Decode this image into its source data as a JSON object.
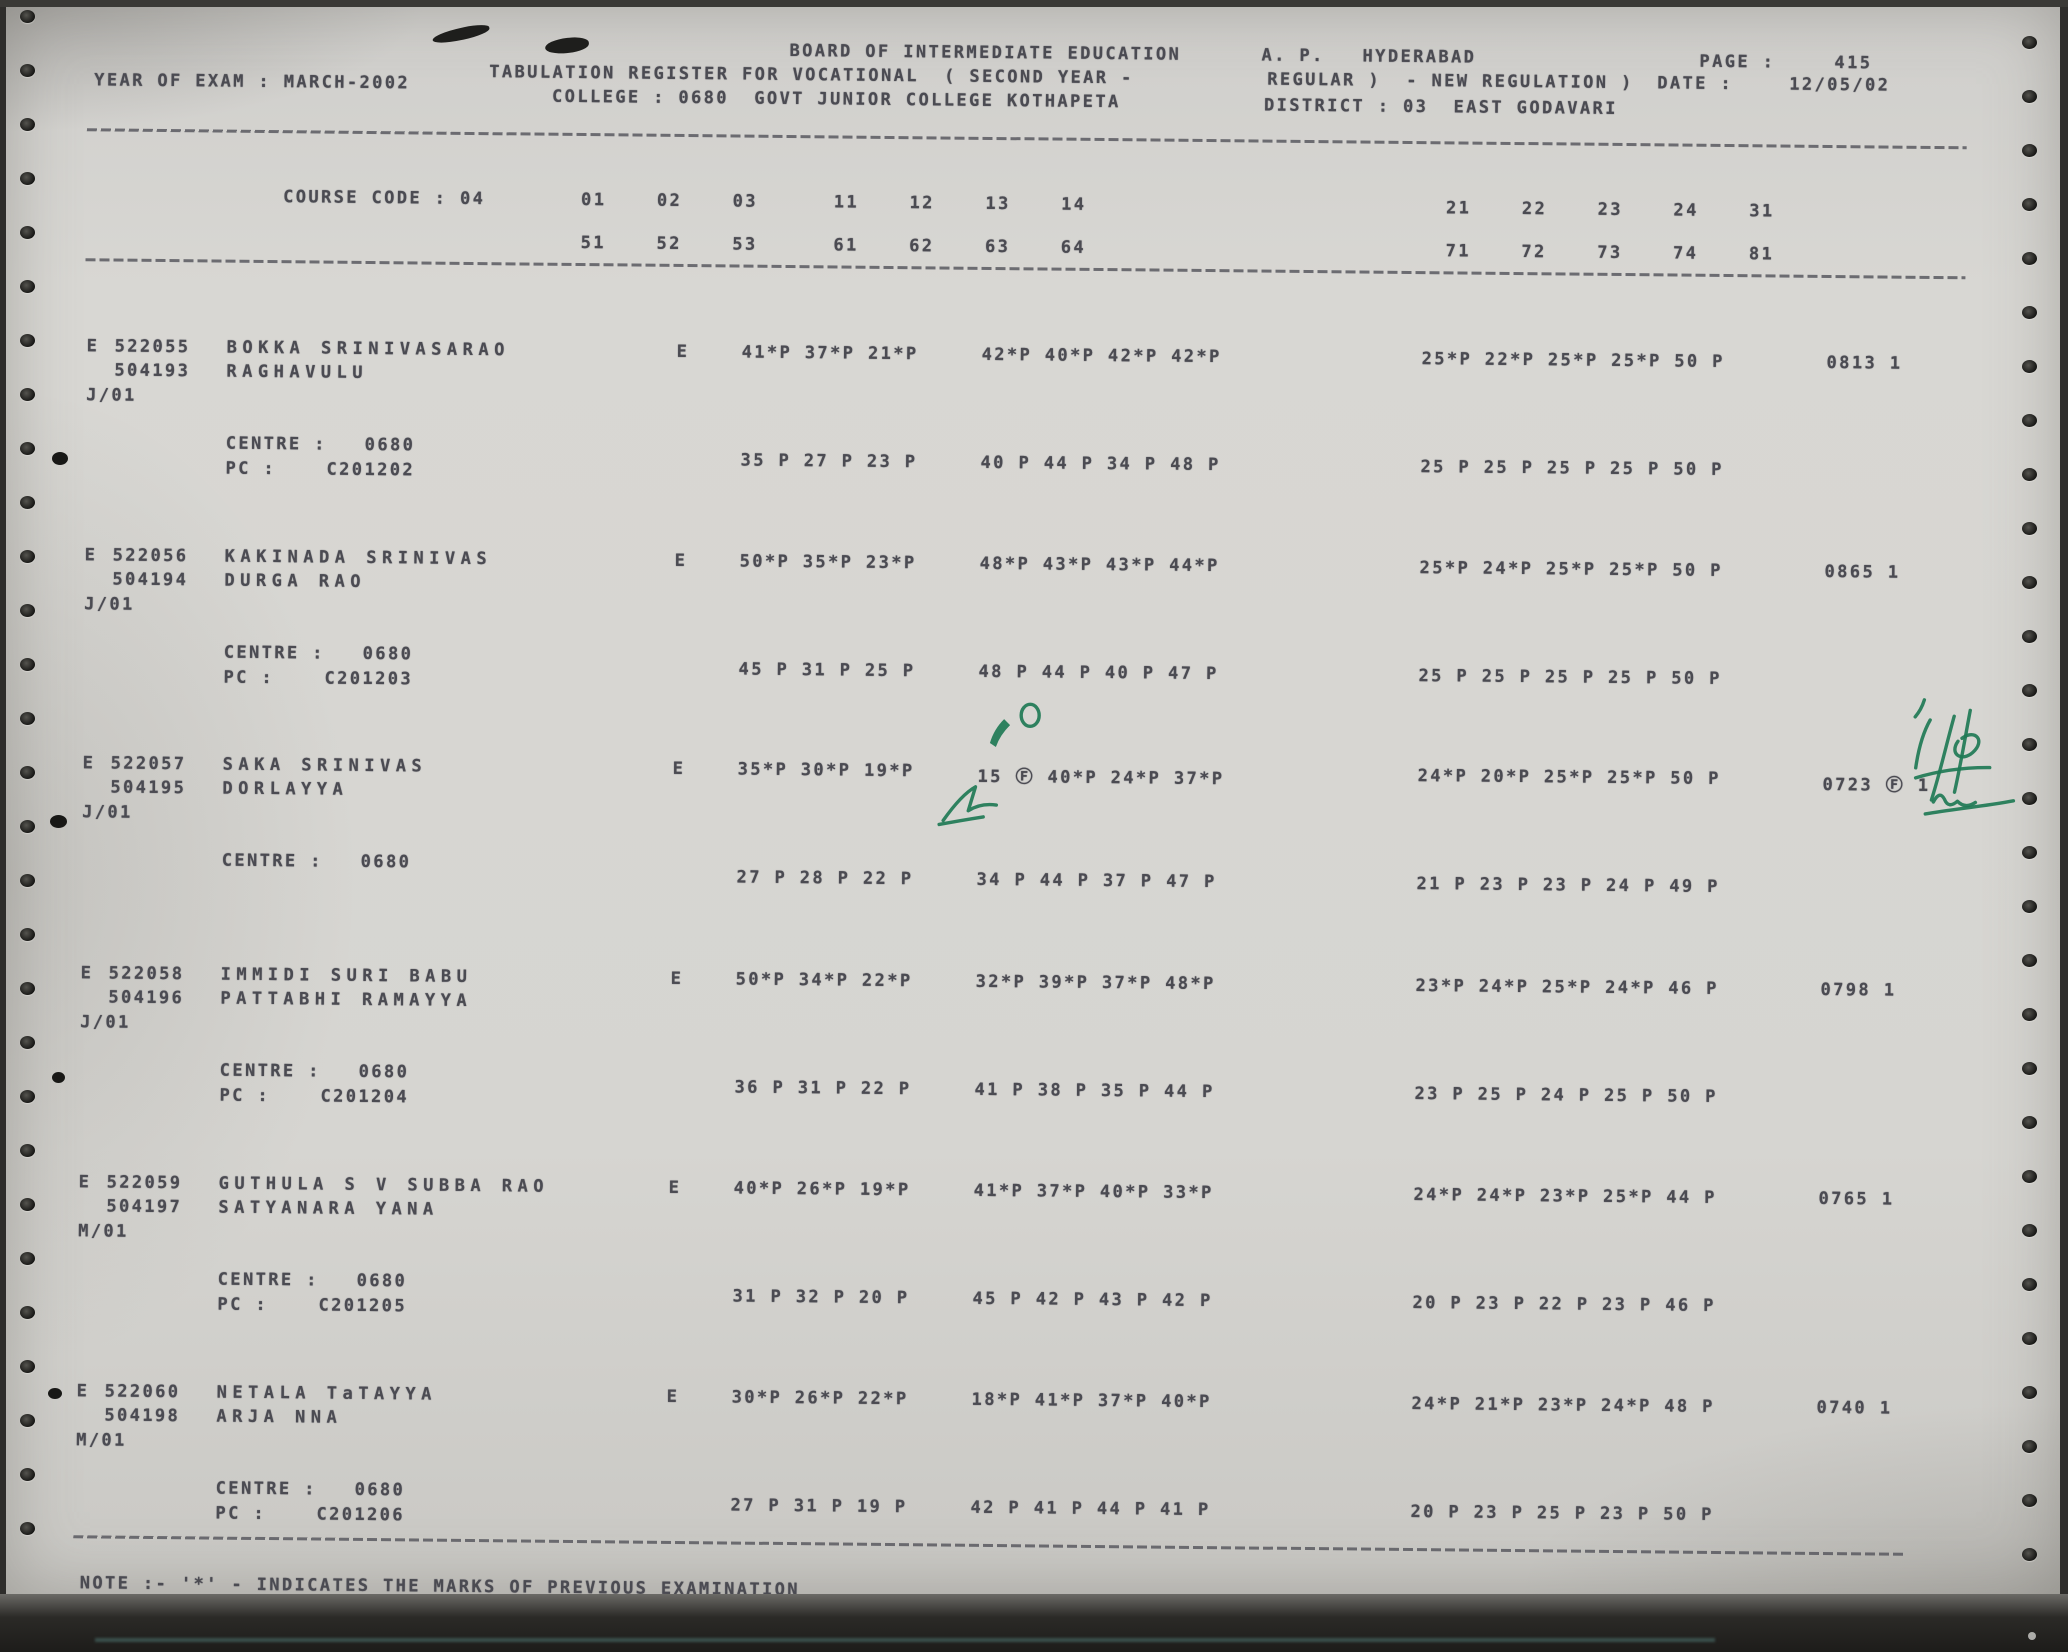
{
  "header": {
    "year_of_exam": "YEAR OF EXAM : MARCH-2002",
    "board_line": "BOARD OF INTERMEDIATE EDUCATION",
    "place_line": "A. P.   HYDERABAD",
    "page_label": "PAGE :",
    "page_value": "415",
    "register_line": "TABULATION REGISTER FOR VOCATIONAL  ( SECOND YEAR -",
    "regulation_line": "REGULAR )  - NEW REGULATION )",
    "date_label": "DATE :",
    "date_value": "12/05/02",
    "college_line": "COLLEGE : 0680  GOVT JUNIOR COLLEGE KOTHAPETA",
    "district_line": "DISTRICT : 03  EAST GODAVARI"
  },
  "course": {
    "code_line": "COURSE CODE : 04",
    "cols_row1_left": "01    02    03      11    12    13    14",
    "cols_row1_right": "21    22    23    24    31",
    "cols_row2_left": "51    52    53      61    62    63    64",
    "cols_row2_right": "71    72    73    74    81"
  },
  "records": [
    {
      "flag": "E",
      "regno": "522055",
      "regno2": "504193",
      "month": "J/01",
      "name1": "BOKKA SRINIVASARAO",
      "name2": "RAGHAVULU",
      "medium": "E",
      "m1a": "41*P 37*P 21*P",
      "m1b": "42*P 40*P 42*P 42*P",
      "m1c": "25*P 22*P 25*P 25*P 50 P",
      "total": "0813 1",
      "centre": "CENTRE :   0680",
      "pc": "PC :    C201202",
      "m2a": "35 P 27 P 23 P",
      "m2b": "40 P 44 P 34 P 48 P",
      "m2c": "25 P 25 P 25 P 25 P 50 P"
    },
    {
      "flag": "E",
      "regno": "522056",
      "regno2": "504194",
      "month": "J/01",
      "name1": "KAKINADA SRINIVAS",
      "name2": "DURGA RAO",
      "medium": "E",
      "m1a": "50*P 35*P 23*P",
      "m1b": "48*P 43*P 43*P 44*P",
      "m1c": "25*P 24*P 25*P 25*P 50 P",
      "total": "0865 1",
      "centre": "CENTRE :   0680",
      "pc": "PC :    C201203",
      "m2a": "45 P 31 P 25 P",
      "m2b": "48 P 44 P 40 P 47 P",
      "m2c": "25 P 25 P 25 P 25 P 50 P"
    },
    {
      "flag": "E",
      "regno": "522057",
      "regno2": "504195",
      "month": "J/01",
      "name1": "SAKA SRINIVAS",
      "name2": "DORLAYYA",
      "medium": "E",
      "m1a": "35*P 30*P 19*P",
      "m1b": "15 Ⓕ 40*P 24*P 37*P",
      "m1c": "24*P 20*P 25*P 25*P 50 P",
      "total": "0723 Ⓕ 1",
      "centre": "CENTRE :   0680",
      "pc": "",
      "m2a": "27 P 28 P 22 P",
      "m2b": "34 P 44 P 37 P 47 P",
      "m2c": "21 P 23 P 23 P 24 P 49 P"
    },
    {
      "flag": "E",
      "regno": "522058",
      "regno2": "504196",
      "month": "J/01",
      "name1": "IMMIDI SURI BABU",
      "name2": "PATTABHI RAMAYYA",
      "medium": "E",
      "m1a": "50*P 34*P 22*P",
      "m1b": "32*P 39*P 37*P 48*P",
      "m1c": "23*P 24*P 25*P 24*P 46 P",
      "total": "0798 1",
      "centre": "CENTRE :   0680",
      "pc": "PC :    C201204",
      "m2a": "36 P 31 P 22 P",
      "m2b": "41 P 38 P 35 P 44 P",
      "m2c": "23 P 25 P 24 P 25 P 50 P"
    },
    {
      "flag": "E",
      "regno": "522059",
      "regno2": "504197",
      "month": "M/01",
      "name1": "GUTHULA S V SUBBA RAO",
      "name2": "SATYANARA YANA",
      "medium": "E",
      "m1a": "40*P 26*P 19*P",
      "m1b": "41*P 37*P 40*P 33*P",
      "m1c": "24*P 24*P 23*P 25*P 44 P",
      "total": "0765 1",
      "centre": "CENTRE :   0680",
      "pc": "PC :    C201205",
      "m2a": "31 P 32 P 20 P",
      "m2b": "45 P 42 P 43 P 42 P",
      "m2c": "20 P 23 P 22 P 23 P 46 P"
    },
    {
      "flag": "E",
      "regno": "522060",
      "regno2": "504198",
      "month": "M/01",
      "name1": "NETALA TaTAYYA",
      "name2": "ARJA NNA",
      "medium": "E",
      "m1a": "30*P 26*P 22*P",
      "m1b": "18*P 41*P 37*P 40*P",
      "m1c": "24*P 21*P 23*P 24*P 48 P",
      "total": "0740 1",
      "centre": "CENTRE :   0680",
      "pc": "PC :    C201206",
      "m2a": "27 P 31 P 19 P",
      "m2b": "42 P 41 P 44 P 41 P",
      "m2c": "20 P 23 P 25 P 23 P 50 P"
    }
  ],
  "footer": {
    "note": "NOTE :- '*' - INDICATES THE MARKS OF PREVIOUS EXAMINATION"
  },
  "colors": {
    "paper": "#d6d5d1",
    "ink": "#4b4b52",
    "pen_green": "#1f7a55"
  }
}
